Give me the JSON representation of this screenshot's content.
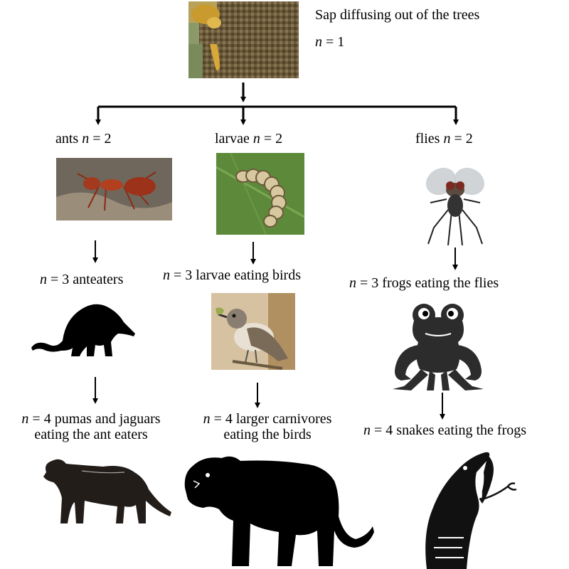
{
  "root": {
    "label": "Sap diffusing out of the trees",
    "n": "1",
    "image": "tree-sap-photo"
  },
  "level2": [
    {
      "label": "ants",
      "n": "2",
      "image": "ant-photo"
    },
    {
      "label": "larvae",
      "n": "2",
      "image": "larva-photo"
    },
    {
      "label": "flies",
      "n": "2",
      "image": "fly-photo"
    }
  ],
  "level3": [
    {
      "n": "3",
      "label": "anteaters",
      "image": "anteater-silhouette"
    },
    {
      "n": "3",
      "label": "larvae eating birds",
      "image": "bird-photo"
    },
    {
      "n": "3",
      "label": "frogs eating the flies",
      "image": "frog-silhouette"
    }
  ],
  "level4": [
    {
      "n": "4",
      "label_line1": "pumas and jaguars",
      "label_line2": "eating the ant eaters",
      "image": "puma-silhouette"
    },
    {
      "n": "4",
      "label_line1": "larger carnivores",
      "label_line2": "eating the birds",
      "image": "tiger-silhouette"
    },
    {
      "n": "4",
      "label": "snakes eating the frogs",
      "image": "snake-silhouette"
    }
  ],
  "symbol": "n",
  "equals": "="
}
